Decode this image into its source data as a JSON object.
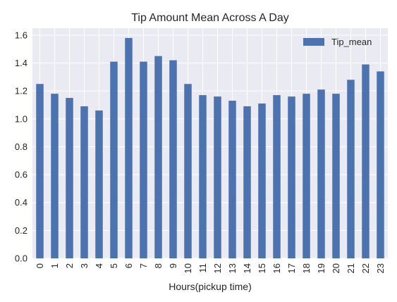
{
  "chart_data": {
    "type": "bar",
    "title": "Tip Amount Mean Across A Day",
    "xlabel": "Hours(pickup time)",
    "ylabel": "",
    "categories": [
      "0",
      "1",
      "2",
      "3",
      "4",
      "5",
      "6",
      "7",
      "8",
      "9",
      "10",
      "11",
      "12",
      "13",
      "14",
      "15",
      "16",
      "17",
      "18",
      "19",
      "20",
      "21",
      "22",
      "23"
    ],
    "series": [
      {
        "name": "Tip_mean",
        "values": [
          1.25,
          1.18,
          1.15,
          1.09,
          1.06,
          1.41,
          1.58,
          1.41,
          1.45,
          1.42,
          1.25,
          1.17,
          1.16,
          1.13,
          1.09,
          1.11,
          1.17,
          1.16,
          1.18,
          1.21,
          1.18,
          1.28,
          1.39,
          1.34
        ]
      }
    ],
    "ylim": [
      0,
      1.65
    ],
    "yticks": [
      "0.0",
      "0.2",
      "0.4",
      "0.6",
      "0.8",
      "1.0",
      "1.2",
      "1.4",
      "1.6"
    ],
    "grid": true,
    "legend_position": "top-right",
    "colors": {
      "bar": "#4c72b0",
      "axes_bg": "#eaeaf2",
      "grid": "#ffffff",
      "text": "#262626"
    }
  }
}
